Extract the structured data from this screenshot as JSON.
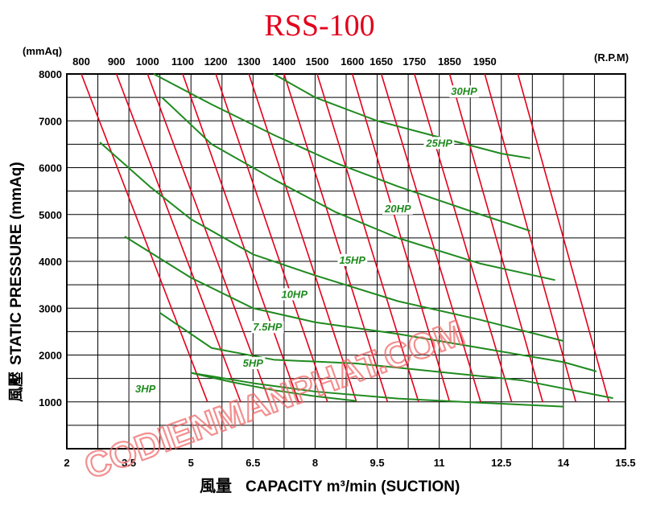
{
  "chart_data": {
    "type": "line",
    "title": "RSS-100",
    "xlabel_prefix": "風量",
    "xlabel": "CAPACITY  m³/min (SUCTION)",
    "ylabel_prefix": "風壓",
    "ylabel": "STATIC  PRESSURE  (mmAq)",
    "y_unit": "(mmAq)",
    "rpm_unit": "(R.P.M)",
    "watermark": "CODIENMANPHAT.COM",
    "xlim": [
      2,
      15.5
    ],
    "ylim": [
      0,
      8000
    ],
    "grid": true,
    "x_tick_labels": [
      {
        "value": 2,
        "label": "2"
      },
      {
        "value": 3.5,
        "label": "3.5"
      },
      {
        "value": 5,
        "label": "5"
      },
      {
        "value": 6.5,
        "label": "6.5"
      },
      {
        "value": 8,
        "label": "8"
      },
      {
        "value": 9.5,
        "label": "9.5"
      },
      {
        "value": 11,
        "label": "11"
      },
      {
        "value": 12.5,
        "label": "12.5"
      },
      {
        "value": 14,
        "label": "14"
      },
      {
        "value": 15.5,
        "label": "15.5"
      }
    ],
    "y_tick_labels": [
      {
        "value": 1000,
        "label": "1000"
      },
      {
        "value": 2000,
        "label": "2000"
      },
      {
        "value": 3000,
        "label": "3000"
      },
      {
        "value": 4000,
        "label": "4000"
      },
      {
        "value": 5000,
        "label": "5000"
      },
      {
        "value": 6000,
        "label": "6000"
      },
      {
        "value": 7000,
        "label": "7000"
      },
      {
        "value": 8000,
        "label": "8000"
      }
    ],
    "rpm_series": [
      {
        "name": "800",
        "points": [
          [
            2.35,
            8000
          ],
          [
            5.4,
            1000
          ]
        ]
      },
      {
        "name": "900",
        "points": [
          [
            3.2,
            8000
          ],
          [
            6.2,
            1000
          ]
        ]
      },
      {
        "name": "1000",
        "points": [
          [
            3.95,
            8000
          ],
          [
            6.9,
            1000
          ]
        ]
      },
      {
        "name": "1100",
        "points": [
          [
            4.8,
            8000
          ],
          [
            7.6,
            1000
          ]
        ]
      },
      {
        "name": "1200",
        "points": [
          [
            5.6,
            8000
          ],
          [
            8.3,
            1000
          ]
        ]
      },
      {
        "name": "1300",
        "points": [
          [
            6.4,
            8000
          ],
          [
            9.0,
            1000
          ]
        ]
      },
      {
        "name": "1400",
        "points": [
          [
            7.25,
            8000
          ],
          [
            9.75,
            1000
          ]
        ]
      },
      {
        "name": "1500",
        "points": [
          [
            8.05,
            8000
          ],
          [
            10.5,
            1000
          ]
        ]
      },
      {
        "name": "1600",
        "points": [
          [
            8.9,
            8000
          ],
          [
            11.25,
            1000
          ]
        ]
      },
      {
        "name": "1650",
        "points": [
          [
            9.6,
            8000
          ],
          [
            12.0,
            1000
          ]
        ]
      },
      {
        "name": "1750",
        "points": [
          [
            10.4,
            8000
          ],
          [
            12.75,
            1000
          ]
        ]
      },
      {
        "name": "1850",
        "points": [
          [
            11.25,
            8000
          ],
          [
            13.5,
            1000
          ]
        ]
      },
      {
        "name": "1950",
        "points": [
          [
            12.1,
            8000
          ],
          [
            14.3,
            1000
          ]
        ]
      },
      {
        "name": "",
        "points": [
          [
            12.9,
            8000
          ],
          [
            15.1,
            1000
          ]
        ]
      }
    ],
    "hp_series": [
      {
        "name": "3HP",
        "label_at": [
          3.9,
          1200
        ],
        "points": [
          [
            5.0,
            1620
          ],
          [
            6.0,
            1420
          ],
          [
            7.0,
            1250
          ],
          [
            8.0,
            1120
          ],
          [
            9.0,
            1020
          ]
        ]
      },
      {
        "name": "5HP",
        "label_at": [
          6.5,
          1750
        ],
        "points": [
          [
            5.0,
            1620
          ],
          [
            6.5,
            1400
          ],
          [
            8.0,
            1220
          ],
          [
            10.0,
            1070
          ],
          [
            12.0,
            980
          ],
          [
            14.0,
            900
          ]
        ]
      },
      {
        "name": "7.5HP",
        "label_at": [
          6.85,
          2520
        ],
        "points": [
          [
            4.25,
            2900
          ],
          [
            5.5,
            2150
          ],
          [
            7.0,
            1900
          ],
          [
            9.0,
            1820
          ],
          [
            11.0,
            1640
          ],
          [
            13.0,
            1460
          ],
          [
            15.2,
            1080
          ]
        ]
      },
      {
        "name": "10HP",
        "label_at": [
          7.5,
          3220
        ],
        "points": [
          [
            3.4,
            4530
          ],
          [
            5.0,
            3650
          ],
          [
            6.5,
            3000
          ],
          [
            8.0,
            2700
          ],
          [
            10.0,
            2450
          ],
          [
            12.0,
            2150
          ],
          [
            14.0,
            1850
          ],
          [
            14.8,
            1650
          ]
        ]
      },
      {
        "name": "15HP",
        "label_at": [
          8.9,
          3950
        ],
        "points": [
          [
            2.8,
            6540
          ],
          [
            4.0,
            5600
          ],
          [
            5.0,
            4900
          ],
          [
            6.5,
            4150
          ],
          [
            8.0,
            3700
          ],
          [
            10.0,
            3150
          ],
          [
            12.0,
            2750
          ],
          [
            14.0,
            2300
          ]
        ]
      },
      {
        "name": "20HP",
        "label_at": [
          10.0,
          5050
        ],
        "points": [
          [
            4.3,
            7500
          ],
          [
            5.5,
            6500
          ],
          [
            7.0,
            5750
          ],
          [
            8.5,
            5050
          ],
          [
            10.0,
            4500
          ],
          [
            12.0,
            3950
          ],
          [
            13.8,
            3600
          ]
        ]
      },
      {
        "name": "25HP",
        "label_at": [
          11.0,
          6450
        ],
        "points": [
          [
            4.1,
            8000
          ],
          [
            5.5,
            7350
          ],
          [
            7.0,
            6700
          ],
          [
            8.5,
            6100
          ],
          [
            10.0,
            5600
          ],
          [
            12.0,
            5000
          ],
          [
            13.2,
            4650
          ]
        ]
      },
      {
        "name": "30HP",
        "label_at": [
          11.6,
          7550
        ],
        "points": [
          [
            7.0,
            8000
          ],
          [
            8.0,
            7500
          ],
          [
            9.5,
            7000
          ],
          [
            11.0,
            6650
          ],
          [
            12.5,
            6300
          ],
          [
            13.2,
            6200
          ]
        ]
      }
    ],
    "colors": {
      "rpm_line": "#e3001b",
      "hp_line": "#1f8a1f",
      "grid": "#000000",
      "title": "#e3001b",
      "watermark": "#f06a6a"
    }
  }
}
